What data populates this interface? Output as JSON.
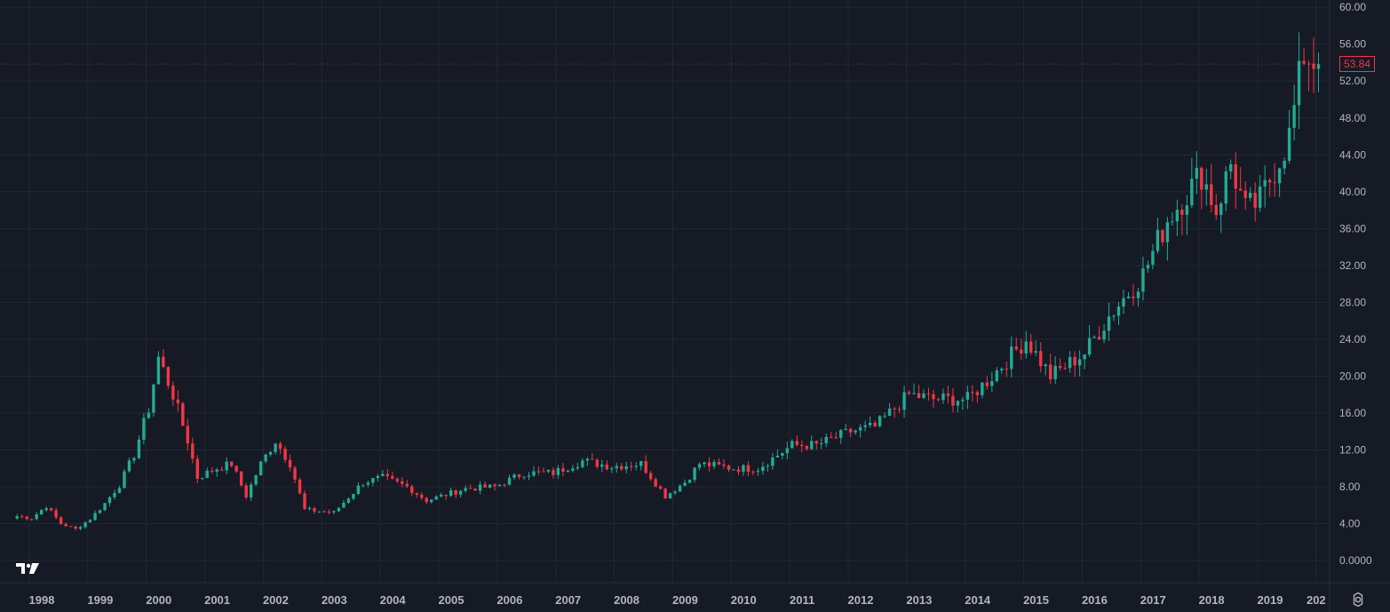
{
  "colors": {
    "background": "#161a25",
    "grid": "#232733",
    "text": "#b2b5be",
    "up": "#22ab94",
    "down": "#f23645"
  },
  "icons": {
    "logo": "tradingview-logo-icon",
    "settings": "gear-icon"
  },
  "last_price": "53.84",
  "chart_data": {
    "type": "candlestick",
    "interval": "monthly",
    "x_range": [
      "1997-10",
      "2020-02"
    ],
    "ylim": [
      0,
      60
    ],
    "y_ticks": [
      "0.0000",
      "4.00",
      "8.00",
      "12.00",
      "16.00",
      "20.00",
      "24.00",
      "28.00",
      "32.00",
      "36.00",
      "40.00",
      "44.00",
      "48.00",
      "52.00",
      "56.00",
      "60.00"
    ],
    "x_ticks": [
      "1998",
      "1999",
      "2000",
      "2001",
      "2002",
      "2003",
      "2004",
      "2005",
      "2006",
      "2007",
      "2008",
      "2009",
      "2010",
      "2011",
      "2012",
      "2013",
      "2014",
      "2015",
      "2016",
      "2017",
      "2018",
      "2019",
      "202"
    ],
    "grid": true,
    "anchors": [
      [
        "1997-10",
        4.8
      ],
      [
        "1998-01",
        4.6
      ],
      [
        "1998-04",
        5.9
      ],
      [
        "1998-07",
        4.0
      ],
      [
        "1998-10",
        3.4
      ],
      [
        "1999-01",
        4.5
      ],
      [
        "1999-04",
        6.2
      ],
      [
        "1999-07",
        8.2
      ],
      [
        "1999-10",
        11.5
      ],
      [
        "2000-01",
        16.5
      ],
      [
        "2000-03",
        22.0
      ],
      [
        "2000-06",
        18.0
      ],
      [
        "2000-09",
        13.0
      ],
      [
        "2000-11",
        9.0
      ],
      [
        "2001-03",
        10.0
      ],
      [
        "2001-06",
        10.5
      ],
      [
        "2001-09",
        7.0
      ],
      [
        "2001-12",
        10.5
      ],
      [
        "2002-03",
        13.0
      ],
      [
        "2002-06",
        10.5
      ],
      [
        "2002-09",
        5.5
      ],
      [
        "2003-03",
        5.2
      ],
      [
        "2003-09",
        8.5
      ],
      [
        "2004-01",
        9.0
      ],
      [
        "2004-06",
        8.0
      ],
      [
        "2004-10",
        6.5
      ],
      [
        "2005-06",
        7.8
      ],
      [
        "2005-12",
        8.0
      ],
      [
        "2006-06",
        9.5
      ],
      [
        "2006-12",
        9.5
      ],
      [
        "2007-06",
        10.8
      ],
      [
        "2007-12",
        10.2
      ],
      [
        "2008-06",
        10.5
      ],
      [
        "2008-11",
        7.0
      ],
      [
        "2009-03",
        8.5
      ],
      [
        "2009-06",
        10.5
      ],
      [
        "2010-01",
        10.0
      ],
      [
        "2010-06",
        10.0
      ],
      [
        "2011-01",
        12.5
      ],
      [
        "2011-06",
        12.5
      ],
      [
        "2012-01",
        14.0
      ],
      [
        "2012-06",
        14.5
      ],
      [
        "2013-01",
        18.0
      ],
      [
        "2013-06",
        17.5
      ],
      [
        "2014-01",
        17.5
      ],
      [
        "2014-06",
        20.0
      ],
      [
        "2015-01",
        24.0
      ],
      [
        "2015-06",
        20.0
      ],
      [
        "2016-01",
        22.5
      ],
      [
        "2016-06",
        26.5
      ],
      [
        "2017-01",
        31.0
      ],
      [
        "2017-06",
        37.0
      ],
      [
        "2018-01",
        42.0
      ],
      [
        "2018-04",
        38.0
      ],
      [
        "2018-07",
        43.0
      ],
      [
        "2018-10",
        38.0
      ],
      [
        "2019-01",
        39.0
      ],
      [
        "2019-04",
        42.5
      ],
      [
        "2019-07",
        46.0
      ],
      [
        "2019-10",
        55.0
      ],
      [
        "2020-01",
        53.8
      ]
    ]
  }
}
